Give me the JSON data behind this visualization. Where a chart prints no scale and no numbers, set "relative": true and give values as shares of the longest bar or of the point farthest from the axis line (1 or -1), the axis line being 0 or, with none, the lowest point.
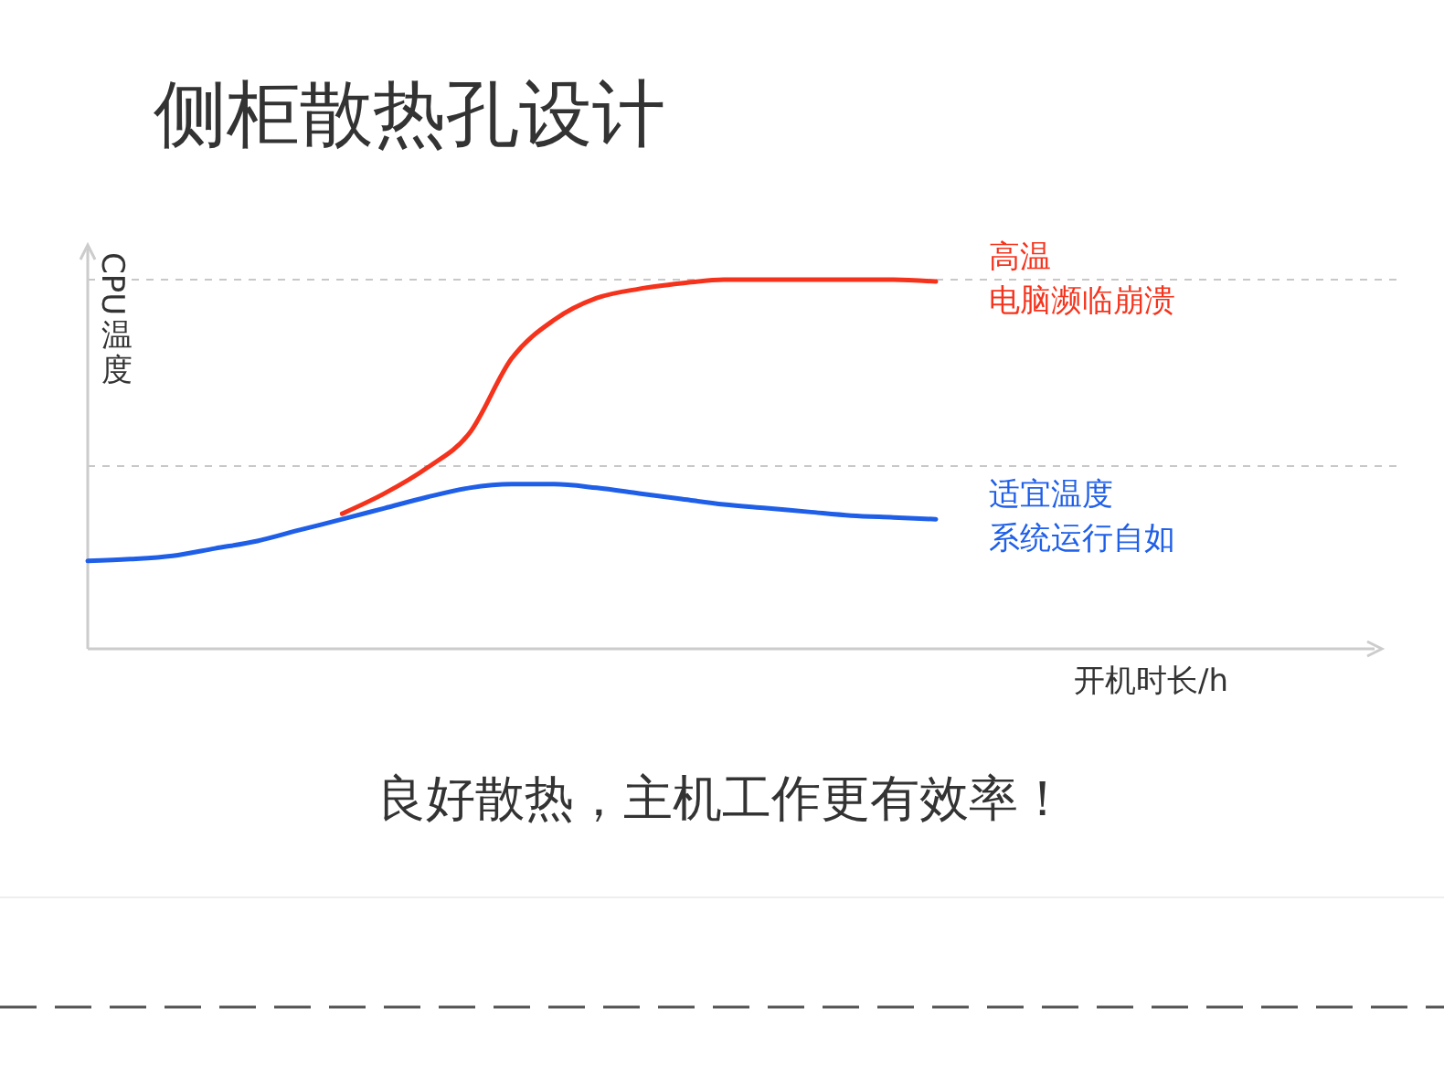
{
  "chart_data": {
    "type": "line",
    "title": "侧柜散热孔设计",
    "subtitle": "良好散热，主机工作更有效率！",
    "xlabel": "开机时长/h",
    "ylabel": "CPU温度",
    "relative": true,
    "categories": [
      null,
      null,
      null,
      null,
      null,
      null,
      null,
      null,
      null,
      null,
      null,
      null,
      null,
      null,
      null,
      null,
      null,
      null,
      null,
      null,
      null
    ],
    "series": [
      {
        "name": "适宜温度",
        "color": "#1f5fe8",
        "values": [
          0.238,
          0.243,
          0.252,
          0.272,
          0.292,
          0.322,
          0.351,
          0.381,
          0.411,
          0.436,
          0.446,
          0.446,
          0.436,
          0.421,
          0.406,
          0.391,
          0.381,
          0.371,
          0.361,
          0.356,
          0.351
        ]
      },
      {
        "name": "高温",
        "color": "#f5331c",
        "values": [
          null,
          null,
          null,
          null,
          null,
          null,
          0.366,
          0.421,
          0.49,
          0.584,
          0.787,
          0.891,
          0.95,
          0.975,
          0.99,
          1,
          1,
          1,
          1,
          1,
          0.995
        ]
      }
    ],
    "annotations": [
      "系统运行自如",
      "电脑濒临崩溃"
    ],
    "ref_lines": [
      {
        "axis": "y",
        "value": 1,
        "color": "#c8c8c8",
        "line_style": "dashed"
      },
      {
        "axis": "y",
        "value": 0.495,
        "color": "#c8c8c8",
        "line_style": "dashed"
      }
    ],
    "line_style": "solid",
    "marker": "none"
  }
}
